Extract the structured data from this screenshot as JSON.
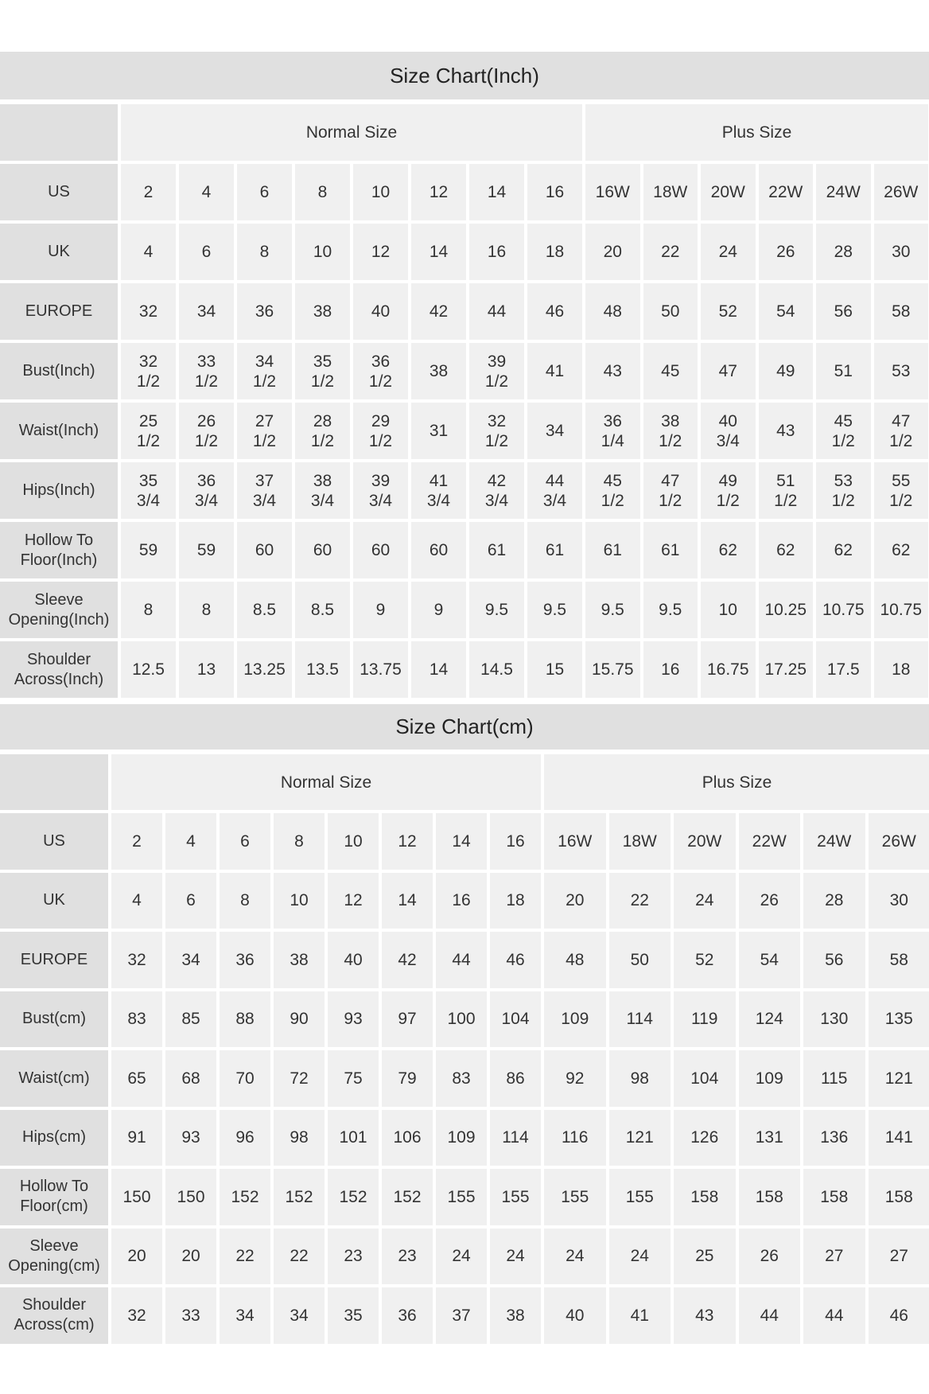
{
  "tables": [
    {
      "title": "Size Chart(Inch)",
      "groups": [
        "Normal Size",
        "Plus Size"
      ],
      "rows": [
        {
          "label": "US",
          "values": [
            "2",
            "4",
            "6",
            "8",
            "10",
            "12",
            "14",
            "16",
            "16W",
            "18W",
            "20W",
            "22W",
            "24W",
            "26W"
          ]
        },
        {
          "label": "UK",
          "values": [
            "4",
            "6",
            "8",
            "10",
            "12",
            "14",
            "16",
            "18",
            "20",
            "22",
            "24",
            "26",
            "28",
            "30"
          ]
        },
        {
          "label": "EUROPE",
          "values": [
            "32",
            "34",
            "36",
            "38",
            "40",
            "42",
            "44",
            "46",
            "48",
            "50",
            "52",
            "54",
            "56",
            "58"
          ]
        },
        {
          "label": "Bust(Inch)",
          "values": [
            "32 1/2",
            "33 1/2",
            "34 1/2",
            "35 1/2",
            "36 1/2",
            "38",
            "39 1/2",
            "41",
            "43",
            "45",
            "47",
            "49",
            "51",
            "53"
          ]
        },
        {
          "label": "Waist(Inch)",
          "values": [
            "25 1/2",
            "26 1/2",
            "27 1/2",
            "28 1/2",
            "29 1/2",
            "31",
            "32 1/2",
            "34",
            "36 1/4",
            "38 1/2",
            "40 3/4",
            "43",
            "45 1/2",
            "47 1/2"
          ]
        },
        {
          "label": "Hips(Inch)",
          "values": [
            "35 3/4",
            "36 3/4",
            "37 3/4",
            "38 3/4",
            "39 3/4",
            "41 3/4",
            "42 3/4",
            "44 3/4",
            "45 1/2",
            "47 1/2",
            "49 1/2",
            "51 1/2",
            "53 1/2",
            "55 1/2"
          ]
        },
        {
          "label": "Hollow To Floor(Inch)",
          "values": [
            "59",
            "59",
            "60",
            "60",
            "60",
            "60",
            "61",
            "61",
            "61",
            "61",
            "62",
            "62",
            "62",
            "62"
          ]
        },
        {
          "label": "Sleeve Opening(Inch)",
          "values": [
            "8",
            "8",
            "8.5",
            "8.5",
            "9",
            "9",
            "9.5",
            "9.5",
            "9.5",
            "9.5",
            "10",
            "10.25",
            "10.75",
            "10.75"
          ]
        },
        {
          "label": "Shoulder Across(Inch)",
          "values": [
            "12.5",
            "13",
            "13.25",
            "13.5",
            "13.75",
            "14",
            "14.5",
            "15",
            "15.75",
            "16",
            "16.75",
            "17.25",
            "17.5",
            "18"
          ]
        }
      ]
    },
    {
      "title": "Size Chart(cm)",
      "groups": [
        "Normal Size",
        "Plus Size"
      ],
      "rows": [
        {
          "label": "US",
          "values": [
            "2",
            "4",
            "6",
            "8",
            "10",
            "12",
            "14",
            "16",
            "16W",
            "18W",
            "20W",
            "22W",
            "24W",
            "26W"
          ]
        },
        {
          "label": "UK",
          "values": [
            "4",
            "6",
            "8",
            "10",
            "12",
            "14",
            "16",
            "18",
            "20",
            "22",
            "24",
            "26",
            "28",
            "30"
          ]
        },
        {
          "label": "EUROPE",
          "values": [
            "32",
            "34",
            "36",
            "38",
            "40",
            "42",
            "44",
            "46",
            "48",
            "50",
            "52",
            "54",
            "56",
            "58"
          ]
        },
        {
          "label": "Bust(cm)",
          "values": [
            "83",
            "85",
            "88",
            "90",
            "93",
            "97",
            "100",
            "104",
            "109",
            "114",
            "119",
            "124",
            "130",
            "135"
          ]
        },
        {
          "label": "Waist(cm)",
          "values": [
            "65",
            "68",
            "70",
            "72",
            "75",
            "79",
            "83",
            "86",
            "92",
            "98",
            "104",
            "109",
            "115",
            "121"
          ]
        },
        {
          "label": "Hips(cm)",
          "values": [
            "91",
            "93",
            "96",
            "98",
            "101",
            "106",
            "109",
            "114",
            "116",
            "121",
            "126",
            "131",
            "136",
            "141"
          ]
        },
        {
          "label": "Hollow To Floor(cm)",
          "values": [
            "150",
            "150",
            "152",
            "152",
            "152",
            "152",
            "155",
            "155",
            "155",
            "155",
            "158",
            "158",
            "158",
            "158"
          ]
        },
        {
          "label": "Sleeve Opening(cm)",
          "values": [
            "20",
            "20",
            "22",
            "22",
            "23",
            "23",
            "24",
            "24",
            "24",
            "24",
            "25",
            "26",
            "27",
            "27"
          ]
        },
        {
          "label": "Shoulder Across(cm)",
          "values": [
            "32",
            "33",
            "34",
            "34",
            "35",
            "36",
            "37",
            "38",
            "40",
            "41",
            "43",
            "44",
            "44",
            "46"
          ]
        }
      ]
    }
  ],
  "colors": {
    "title_band": "#e0e0e0",
    "label_cell": "#e0e0e0",
    "value_cell": "#f0f0f0",
    "text": "#333333"
  }
}
